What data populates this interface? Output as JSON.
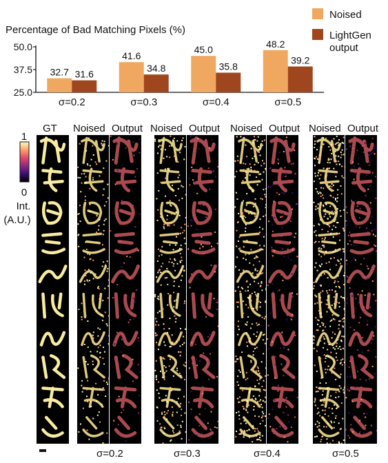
{
  "chart_data": {
    "type": "bar",
    "title": "Percentage of Bad Matching Pixels (%)",
    "categories": [
      "σ=0.2",
      "σ=0.3",
      "σ=0.4",
      "σ=0.5"
    ],
    "series": [
      {
        "name": "Noised",
        "values": [
          32.7,
          41.6,
          45.0,
          48.2
        ],
        "color": "#f0a860"
      },
      {
        "name": "LightGen output",
        "name_lines": [
          "LightGen",
          "output"
        ],
        "values": [
          31.6,
          34.8,
          35.8,
          39.2
        ],
        "color": "#a0461e"
      }
    ],
    "value_labels": {
      "Noised": [
        "32.7",
        "41.6",
        "45.0",
        "48.2"
      ],
      "LightGen output": [
        "31.6",
        "34.8",
        "35.8",
        "39.2"
      ]
    },
    "ylim": [
      25.0,
      50.0
    ],
    "yticks": [
      "25.0",
      "37.5",
      "50.0"
    ],
    "legend_position": "top-right",
    "grid": false
  },
  "image_panel": {
    "gt_label": "GT",
    "noised_label": "Noised",
    "output_label": "Output",
    "sigma_labels": [
      "σ=0.2",
      "σ=0.3",
      "σ=0.4",
      "σ=0.5"
    ],
    "noise_fractions": [
      0.2,
      0.3,
      0.4,
      0.5
    ],
    "colorbar": {
      "max_label": "1",
      "min_label": "0",
      "unit_line1": "Int.",
      "unit_line2": "(A.U.)",
      "colormap": [
        "#000004",
        "#3b0f70",
        "#8c2981",
        "#de4968",
        "#fe9f6d",
        "#fcfdbf"
      ]
    }
  }
}
